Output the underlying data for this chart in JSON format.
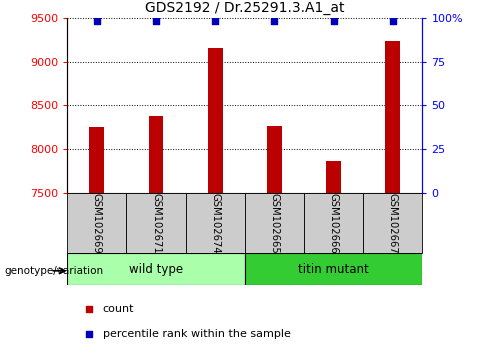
{
  "title": "GDS2192 / Dr.25291.3.A1_at",
  "samples": [
    "GSM102669",
    "GSM102671",
    "GSM102674",
    "GSM102665",
    "GSM102666",
    "GSM102667"
  ],
  "counts": [
    8250,
    8380,
    9150,
    8260,
    7870,
    9230
  ],
  "percentile_ranks": [
    98,
    98,
    98,
    98,
    98,
    98
  ],
  "ylim_left": [
    7500,
    9500
  ],
  "ylim_right": [
    0,
    100
  ],
  "yticks_left": [
    7500,
    8000,
    8500,
    9000,
    9500
  ],
  "yticks_right": [
    0,
    25,
    50,
    75,
    100
  ],
  "bar_color": "#bb0000",
  "dot_color": "#0000bb",
  "wild_type_label": "wild type",
  "titin_mutant_label": "titin mutant",
  "wild_type_bg": "#aaffaa",
  "titin_mutant_bg": "#33cc33",
  "sample_bg": "#cccccc",
  "genotype_label": "genotype/variation",
  "legend_count_label": "count",
  "legend_percentile_label": "percentile rank within the sample",
  "title_fontsize": 10,
  "tick_fontsize": 8,
  "bar_width": 0.25
}
